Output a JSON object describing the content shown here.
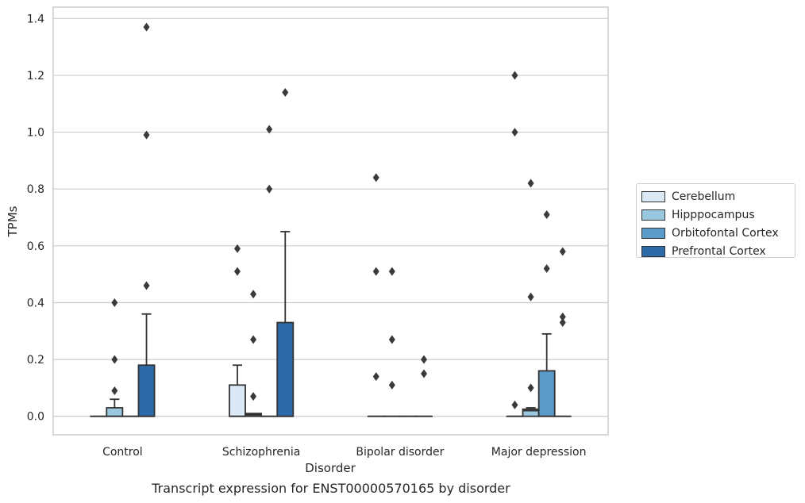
{
  "caption": "Transcript expression for ENST00000570165 by disorder",
  "chart_data": {
    "type": "box",
    "xlabel": "Disorder",
    "ylabel": "TPMs",
    "ylim": [
      -0.065,
      1.44
    ],
    "yticks": [
      0.0,
      0.2,
      0.4,
      0.6,
      0.8,
      1.0,
      1.2,
      1.4
    ],
    "ytick_labels": [
      "0.0",
      "0.2",
      "0.4",
      "0.6",
      "0.8",
      "1.0",
      "1.2",
      "1.4"
    ],
    "grid": "horizontal",
    "legend_position": "right",
    "categories": [
      "Control",
      "Schizophrenia",
      "Bipolar disorder",
      "Major depression"
    ],
    "series": [
      {
        "name": "Cerebellum",
        "color": "#dbe9f6",
        "boxes": [
          {
            "min": 0,
            "q1": 0,
            "median": 0,
            "q3": 0,
            "max": 0,
            "outliers": []
          },
          {
            "min": 0,
            "q1": 0,
            "median": 0,
            "q3": 0.11,
            "max": 0.18,
            "outliers": [
              0.51,
              0.59
            ]
          },
          {
            "min": 0,
            "q1": 0,
            "median": 0,
            "q3": 0,
            "max": 0,
            "outliers": [
              0.14,
              0.51,
              0.84
            ]
          },
          {
            "min": 0,
            "q1": 0,
            "median": 0,
            "q3": 0,
            "max": 0,
            "outliers": [
              0.04,
              1.0,
              1.2
            ]
          }
        ]
      },
      {
        "name": "Hipppocampus",
        "color": "#9ac8e0",
        "boxes": [
          {
            "min": 0,
            "q1": 0,
            "median": 0,
            "q3": 0.03,
            "max": 0.06,
            "outliers": [
              0.09,
              0.2,
              0.4
            ]
          },
          {
            "min": 0,
            "q1": 0,
            "median": 0.005,
            "q3": 0.01,
            "max": 0.01,
            "outliers": [
              0.07,
              0.27,
              0.43
            ]
          },
          {
            "min": 0,
            "q1": 0,
            "median": 0,
            "q3": 0,
            "max": 0,
            "outliers": [
              0.11,
              0.27,
              0.51
            ]
          },
          {
            "min": 0,
            "q1": 0,
            "median": 0.02,
            "q3": 0.025,
            "max": 0.03,
            "outliers": [
              0.1,
              0.42,
              0.82
            ]
          }
        ]
      },
      {
        "name": "Orbitofontal Cortex",
        "color": "#5a9bc9",
        "boxes": [
          {
            "min": 0,
            "q1": 0,
            "median": 0,
            "q3": 0,
            "max": 0,
            "outliers": []
          },
          {
            "min": 0,
            "q1": 0,
            "median": 0,
            "q3": 0,
            "max": 0,
            "outliers": [
              0.8,
              1.01
            ]
          },
          {
            "min": 0,
            "q1": 0,
            "median": 0,
            "q3": 0,
            "max": 0,
            "outliers": []
          },
          {
            "min": 0,
            "q1": 0,
            "median": 0,
            "q3": 0.16,
            "max": 0.29,
            "outliers": [
              0.52,
              0.71
            ]
          }
        ]
      },
      {
        "name": "Prefrontal Cortex",
        "color": "#2d6aa8",
        "boxes": [
          {
            "min": 0,
            "q1": 0,
            "median": 0,
            "q3": 0.18,
            "max": 0.36,
            "outliers": [
              0.46,
              0.99,
              1.37
            ]
          },
          {
            "min": 0,
            "q1": 0,
            "median": 0,
            "q3": 0.33,
            "max": 0.65,
            "outliers": [
              1.14
            ]
          },
          {
            "min": 0,
            "q1": 0,
            "median": 0,
            "q3": 0,
            "max": 0,
            "outliers": [
              0.15,
              0.2
            ]
          },
          {
            "min": 0,
            "q1": 0,
            "median": 0,
            "q3": 0,
            "max": 0,
            "outliers": [
              0.33,
              0.35,
              0.58
            ]
          }
        ]
      }
    ]
  }
}
